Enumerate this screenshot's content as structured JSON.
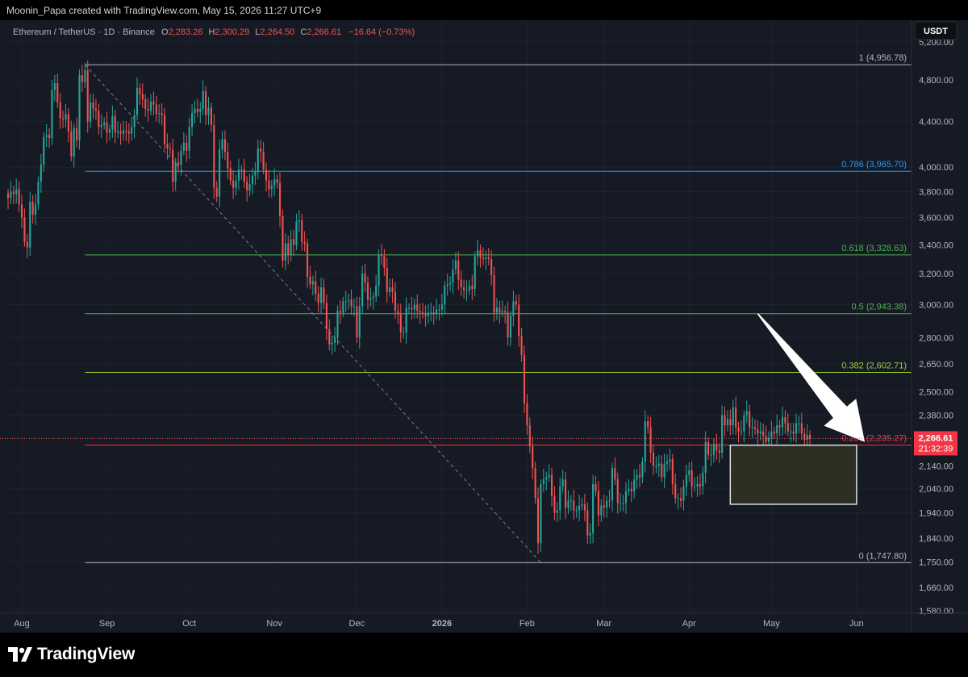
{
  "header": {
    "text": "Moonin_Papa created with TradingView.com, May 15, 2026 11:27 UTC+9"
  },
  "legend": {
    "symbol": "Ethereum / TetherUS · 1D · Binance",
    "O_label": "O",
    "O": "2,283.26",
    "H_label": "H",
    "H": "2,300.29",
    "L_label": "L",
    "L": "2,264.50",
    "C_label": "C",
    "C": "2,266.61",
    "change": "−16.64 (−0.73%)"
  },
  "currency_badge": "USDT",
  "price_badge": {
    "price": "2,266.61",
    "countdown": "21:32:39"
  },
  "brand": "TradingView",
  "colors": {
    "up": "#26a69a",
    "down": "#ef5350",
    "bg": "#161a25",
    "fib_1": "#b2b5be",
    "fib_0786": "#2196f3",
    "fib_0618": "#4caf50",
    "fib_05": "#4caf50",
    "fib_0382": "#9acd32",
    "fib_0236": "#f23645",
    "fib_0": "#b2b5be"
  },
  "chart_data": {
    "type": "candlestick",
    "scale": "log",
    "ylim": [
      1580,
      5350
    ],
    "x_range": [
      "2025-07-27",
      "2026-06-21"
    ],
    "y_ticks": [
      {
        "v": 5200,
        "label": "5,200.00"
      },
      {
        "v": 4800,
        "label": "4,800.00"
      },
      {
        "v": 4400,
        "label": "4,400.00"
      },
      {
        "v": 4000,
        "label": "4,000.00"
      },
      {
        "v": 3800,
        "label": "3,800.00"
      },
      {
        "v": 3600,
        "label": "3,600.00"
      },
      {
        "v": 3400,
        "label": "3,400.00"
      },
      {
        "v": 3200,
        "label": "3,200.00"
      },
      {
        "v": 3000,
        "label": "3,000.00"
      },
      {
        "v": 2800,
        "label": "2,800.00"
      },
      {
        "v": 2650,
        "label": "2,650.00"
      },
      {
        "v": 2500,
        "label": "2,500.00"
      },
      {
        "v": 2380,
        "label": "2,380.00"
      },
      {
        "v": 2140,
        "label": "2,140.00"
      },
      {
        "v": 2040,
        "label": "2,040.00"
      },
      {
        "v": 1940,
        "label": "1,940.00"
      },
      {
        "v": 1840,
        "label": "1,840.00"
      },
      {
        "v": 1750,
        "label": "1,750.00"
      },
      {
        "v": 1660,
        "label": "1,660.00"
      },
      {
        "v": 1580,
        "label": "1,580.00"
      }
    ],
    "x_ticks": [
      {
        "date": "2025-08-01",
        "label": "Aug"
      },
      {
        "date": "2025-09-01",
        "label": "Sep"
      },
      {
        "date": "2025-10-01",
        "label": "Oct"
      },
      {
        "date": "2025-11-01",
        "label": "Nov"
      },
      {
        "date": "2025-12-01",
        "label": "Dec"
      },
      {
        "date": "2026-01-01",
        "label": "2026",
        "bold": true
      },
      {
        "date": "2026-02-01",
        "label": "Feb"
      },
      {
        "date": "2026-03-01",
        "label": "Mar"
      },
      {
        "date": "2026-04-01",
        "label": "Apr"
      },
      {
        "date": "2026-05-01",
        "label": "May"
      },
      {
        "date": "2026-06-01",
        "label": "Jun"
      }
    ],
    "fib_levels": [
      {
        "level": "1",
        "price": 4956.78,
        "label": "1 (4,956.78)",
        "color": "#b2b5be"
      },
      {
        "level": "0.786",
        "price": 3965.7,
        "label": "0.786 (3,965.70)",
        "color": "#2196f3"
      },
      {
        "level": "0.618",
        "price": 3328.63,
        "label": "0.618 (3,328.63)",
        "color": "#4caf50"
      },
      {
        "level": "0.5",
        "price": 2943.38,
        "label": "0.5 (2,943.38)",
        "color": "#4caf50"
      },
      {
        "level": "0.382",
        "price": 2602.71,
        "label": "0.382 (2,602.71)",
        "color": "#9acd32"
      },
      {
        "level": "0.236",
        "price": 2235.27,
        "label": "0.236 (2,235.27)",
        "color": "#f23645"
      },
      {
        "level": "0",
        "price": 1747.8,
        "label": "0 (1,747.80)",
        "color": "#b2b5be"
      }
    ],
    "fib_start_date": "2025-08-24",
    "fib_end_date": "2026-06-21",
    "trend_line": [
      {
        "date": "2025-08-24",
        "price": 4956.78
      },
      {
        "date": "2026-02-06",
        "price": 1747.8
      }
    ],
    "current_price": 2266.61,
    "zone_box": {
      "from": "2026-04-16",
      "to": "2026-06-01",
      "top": 2235,
      "bottom": 1975
    },
    "arrow": {
      "from": {
        "date": "2026-04-26",
        "price": 2943
      },
      "to": {
        "date": "2026-06-04",
        "price": 2250
      }
    },
    "closes": [
      [
        "2025-07-27",
        3750
      ],
      [
        "2025-07-28",
        3800
      ],
      [
        "2025-07-29",
        3780
      ],
      [
        "2025-07-30",
        3820
      ],
      [
        "2025-07-31",
        3700
      ],
      [
        "2025-08-01",
        3600
      ],
      [
        "2025-08-02",
        3420
      ],
      [
        "2025-08-03",
        3380
      ],
      [
        "2025-08-04",
        3720
      ],
      [
        "2025-08-05",
        3620
      ],
      [
        "2025-08-06",
        3700
      ],
      [
        "2025-08-07",
        3880
      ],
      [
        "2025-08-08",
        4020
      ],
      [
        "2025-08-09",
        4260
      ],
      [
        "2025-08-10",
        4280
      ],
      [
        "2025-08-11",
        4250
      ],
      [
        "2025-08-12",
        4700
      ],
      [
        "2025-08-13",
        4770
      ],
      [
        "2025-08-14",
        4580
      ],
      [
        "2025-08-15",
        4430
      ],
      [
        "2025-08-16",
        4420
      ],
      [
        "2025-08-17",
        4470
      ],
      [
        "2025-08-18",
        4310
      ],
      [
        "2025-08-19",
        4090
      ],
      [
        "2025-08-20",
        4340
      ],
      [
        "2025-08-21",
        4230
      ],
      [
        "2025-08-22",
        4850
      ],
      [
        "2025-08-23",
        4780
      ],
      [
        "2025-08-24",
        4900
      ],
      [
        "2025-08-25",
        4400
      ],
      [
        "2025-08-26",
        4580
      ],
      [
        "2025-08-27",
        4520
      ],
      [
        "2025-08-28",
        4500
      ],
      [
        "2025-08-29",
        4350
      ],
      [
        "2025-08-30",
        4370
      ],
      [
        "2025-08-31",
        4390
      ],
      [
        "2025-09-01",
        4300
      ],
      [
        "2025-09-02",
        4330
      ],
      [
        "2025-09-03",
        4450
      ],
      [
        "2025-09-04",
        4300
      ],
      [
        "2025-09-05",
        4310
      ],
      [
        "2025-09-06",
        4290
      ],
      [
        "2025-09-07",
        4320
      ],
      [
        "2025-09-08",
        4310
      ],
      [
        "2025-09-09",
        4290
      ],
      [
        "2025-09-10",
        4350
      ],
      [
        "2025-09-11",
        4460
      ],
      [
        "2025-09-12",
        4720
      ],
      [
        "2025-09-13",
        4660
      ],
      [
        "2025-09-14",
        4610
      ],
      [
        "2025-09-15",
        4520
      ],
      [
        "2025-09-16",
        4500
      ],
      [
        "2025-09-17",
        4590
      ],
      [
        "2025-09-18",
        4560
      ],
      [
        "2025-09-19",
        4470
      ],
      [
        "2025-09-20",
        4480
      ],
      [
        "2025-09-21",
        4460
      ],
      [
        "2025-09-22",
        4200
      ],
      [
        "2025-09-23",
        4160
      ],
      [
        "2025-09-24",
        4150
      ],
      [
        "2025-09-25",
        3880
      ],
      [
        "2025-09-26",
        4040
      ],
      [
        "2025-09-27",
        4020
      ],
      [
        "2025-09-28",
        4140
      ],
      [
        "2025-09-29",
        4210
      ],
      [
        "2025-09-30",
        4140
      ],
      [
        "2025-10-01",
        4350
      ],
      [
        "2025-10-02",
        4480
      ],
      [
        "2025-10-03",
        4520
      ],
      [
        "2025-10-04",
        4490
      ],
      [
        "2025-10-05",
        4520
      ],
      [
        "2025-10-06",
        4690
      ],
      [
        "2025-10-07",
        4460
      ],
      [
        "2025-10-08",
        4530
      ],
      [
        "2025-10-09",
        4370
      ],
      [
        "2025-10-10",
        3830
      ],
      [
        "2025-10-11",
        3760
      ],
      [
        "2025-10-12",
        4150
      ],
      [
        "2025-10-13",
        4240
      ],
      [
        "2025-10-14",
        4130
      ],
      [
        "2025-10-15",
        3990
      ],
      [
        "2025-10-16",
        3890
      ],
      [
        "2025-10-17",
        3830
      ],
      [
        "2025-10-18",
        3890
      ],
      [
        "2025-10-19",
        3980
      ],
      [
        "2025-10-20",
        3980
      ],
      [
        "2025-10-21",
        3880
      ],
      [
        "2025-10-22",
        3810
      ],
      [
        "2025-10-23",
        3860
      ],
      [
        "2025-10-24",
        3930
      ],
      [
        "2025-10-25",
        3960
      ],
      [
        "2025-10-26",
        4160
      ],
      [
        "2025-10-27",
        4130
      ],
      [
        "2025-10-28",
        3980
      ],
      [
        "2025-10-29",
        3890
      ],
      [
        "2025-10-30",
        3820
      ],
      [
        "2025-10-31",
        3850
      ],
      [
        "2025-11-01",
        3900
      ],
      [
        "2025-11-02",
        3870
      ],
      [
        "2025-11-03",
        3610
      ],
      [
        "2025-11-04",
        3290
      ],
      [
        "2025-11-05",
        3410
      ],
      [
        "2025-11-06",
        3330
      ],
      [
        "2025-11-07",
        3440
      ],
      [
        "2025-11-08",
        3400
      ],
      [
        "2025-11-09",
        3570
      ],
      [
        "2025-11-10",
        3580
      ],
      [
        "2025-11-11",
        3420
      ],
      [
        "2025-11-12",
        3410
      ],
      [
        "2025-11-13",
        3180
      ],
      [
        "2025-11-14",
        3130
      ],
      [
        "2025-11-15",
        3150
      ],
      [
        "2025-11-16",
        3070
      ],
      [
        "2025-11-17",
        3010
      ],
      [
        "2025-11-18",
        3110
      ],
      [
        "2025-11-19",
        3010
      ],
      [
        "2025-11-20",
        2850
      ],
      [
        "2025-11-21",
        2760
      ],
      [
        "2025-11-22",
        2770
      ],
      [
        "2025-11-23",
        2800
      ],
      [
        "2025-11-24",
        2960
      ],
      [
        "2025-11-25",
        2950
      ],
      [
        "2025-11-26",
        3020
      ],
      [
        "2025-11-27",
        3020
      ],
      [
        "2025-11-28",
        3030
      ],
      [
        "2025-11-29",
        2990
      ],
      [
        "2025-11-30",
        2990
      ],
      [
        "2025-12-01",
        2800
      ],
      [
        "2025-12-02",
        2990
      ],
      [
        "2025-12-03",
        3200
      ],
      [
        "2025-12-04",
        3140
      ],
      [
        "2025-12-05",
        3030
      ],
      [
        "2025-12-06",
        3040
      ],
      [
        "2025-12-07",
        3050
      ],
      [
        "2025-12-08",
        3120
      ],
      [
        "2025-12-09",
        3330
      ],
      [
        "2025-12-10",
        3320
      ],
      [
        "2025-12-11",
        3240
      ],
      [
        "2025-12-12",
        3080
      ],
      [
        "2025-12-13",
        3110
      ],
      [
        "2025-12-14",
        3080
      ],
      [
        "2025-12-15",
        2960
      ],
      [
        "2025-12-16",
        2940
      ],
      [
        "2025-12-17",
        2830
      ],
      [
        "2025-12-18",
        2830
      ],
      [
        "2025-12-19",
        2980
      ],
      [
        "2025-12-20",
        2980
      ],
      [
        "2025-12-21",
        2970
      ],
      [
        "2025-12-22",
        3000
      ],
      [
        "2025-12-23",
        2960
      ],
      [
        "2025-12-24",
        2950
      ],
      [
        "2025-12-25",
        2940
      ],
      [
        "2025-12-26",
        2930
      ],
      [
        "2025-12-27",
        2950
      ],
      [
        "2025-12-28",
        2950
      ],
      [
        "2025-12-29",
        2940
      ],
      [
        "2025-12-30",
        2970
      ],
      [
        "2025-12-31",
        2970
      ],
      [
        "2026-01-01",
        3000
      ],
      [
        "2026-01-02",
        3120
      ],
      [
        "2026-01-03",
        3130
      ],
      [
        "2026-01-04",
        3140
      ],
      [
        "2026-01-05",
        3230
      ],
      [
        "2026-01-06",
        3290
      ],
      [
        "2026-01-07",
        3160
      ],
      [
        "2026-01-08",
        3110
      ],
      [
        "2026-01-09",
        3090
      ],
      [
        "2026-01-10",
        3090
      ],
      [
        "2026-01-11",
        3120
      ],
      [
        "2026-01-12",
        3100
      ],
      [
        "2026-01-13",
        3320
      ],
      [
        "2026-01-14",
        3360
      ],
      [
        "2026-01-15",
        3310
      ],
      [
        "2026-01-16",
        3300
      ],
      [
        "2026-01-17",
        3310
      ],
      [
        "2026-01-18",
        3300
      ],
      [
        "2026-01-19",
        3190
      ],
      [
        "2026-01-20",
        2950
      ],
      [
        "2026-01-21",
        2980
      ],
      [
        "2026-01-22",
        2950
      ],
      [
        "2026-01-23",
        2960
      ],
      [
        "2026-01-24",
        2950
      ],
      [
        "2026-01-25",
        2800
      ],
      [
        "2026-01-26",
        2930
      ],
      [
        "2026-01-27",
        3020
      ],
      [
        "2026-01-28",
        3000
      ],
      [
        "2026-01-29",
        2810
      ],
      [
        "2026-01-30",
        2700
      ],
      [
        "2026-01-31",
        2440
      ],
      [
        "2026-02-01",
        2330
      ],
      [
        "2026-02-02",
        2230
      ],
      [
        "2026-02-03",
        2130
      ],
      [
        "2026-02-04",
        2000
      ],
      [
        "2026-02-05",
        1820
      ],
      [
        "2026-02-06",
        2060
      ],
      [
        "2026-02-07",
        2080
      ],
      [
        "2026-02-08",
        2090
      ],
      [
        "2026-02-09",
        2100
      ],
      [
        "2026-02-10",
        2010
      ],
      [
        "2026-02-11",
        1940
      ],
      [
        "2026-02-12",
        1950
      ],
      [
        "2026-02-13",
        2050
      ],
      [
        "2026-02-14",
        2080
      ],
      [
        "2026-02-15",
        1960
      ],
      [
        "2026-02-16",
        1990
      ],
      [
        "2026-02-17",
        1990
      ],
      [
        "2026-02-18",
        1950
      ],
      [
        "2026-02-19",
        1950
      ],
      [
        "2026-02-20",
        1970
      ],
      [
        "2026-02-21",
        1975
      ],
      [
        "2026-02-22",
        1950
      ],
      [
        "2026-02-23",
        1850
      ],
      [
        "2026-02-24",
        1860
      ],
      [
        "2026-02-25",
        2060
      ],
      [
        "2026-02-26",
        2030
      ],
      [
        "2026-02-27",
        1930
      ],
      [
        "2026-02-28",
        1970
      ],
      [
        "2026-03-01",
        1960
      ],
      [
        "2026-03-02",
        1990
      ],
      [
        "2026-03-03",
        1990
      ],
      [
        "2026-03-04",
        2130
      ],
      [
        "2026-03-05",
        2080
      ],
      [
        "2026-03-06",
        1980
      ],
      [
        "2026-03-07",
        1980
      ],
      [
        "2026-03-08",
        1980
      ],
      [
        "2026-03-09",
        2030
      ],
      [
        "2026-03-10",
        2040
      ],
      [
        "2026-03-11",
        2030
      ],
      [
        "2026-03-12",
        2080
      ],
      [
        "2026-03-13",
        2100
      ],
      [
        "2026-03-14",
        2090
      ],
      [
        "2026-03-15",
        2160
      ],
      [
        "2026-03-16",
        2350
      ],
      [
        "2026-03-17",
        2320
      ],
      [
        "2026-03-18",
        2200
      ],
      [
        "2026-03-19",
        2140
      ],
      [
        "2026-03-20",
        2140
      ],
      [
        "2026-03-21",
        2150
      ],
      [
        "2026-03-22",
        2090
      ],
      [
        "2026-03-23",
        2150
      ],
      [
        "2026-03-24",
        2160
      ],
      [
        "2026-03-25",
        2170
      ],
      [
        "2026-03-26",
        2060
      ],
      [
        "2026-03-27",
        2000
      ],
      [
        "2026-03-28",
        2000
      ],
      [
        "2026-03-29",
        1990
      ],
      [
        "2026-03-30",
        2050
      ],
      [
        "2026-03-31",
        2100
      ],
      [
        "2026-04-01",
        2120
      ],
      [
        "2026-04-02",
        2050
      ],
      [
        "2026-04-03",
        2050
      ],
      [
        "2026-04-04",
        2060
      ],
      [
        "2026-04-05",
        2050
      ],
      [
        "2026-04-06",
        2110
      ],
      [
        "2026-04-07",
        2250
      ],
      [
        "2026-04-08",
        2190
      ],
      [
        "2026-04-09",
        2190
      ],
      [
        "2026-04-10",
        2240
      ],
      [
        "2026-04-11",
        2210
      ],
      [
        "2026-04-12",
        2200
      ],
      [
        "2026-04-13",
        2380
      ],
      [
        "2026-04-14",
        2330
      ],
      [
        "2026-04-15",
        2360
      ],
      [
        "2026-04-16",
        2330
      ],
      [
        "2026-04-17",
        2420
      ],
      [
        "2026-04-18",
        2320
      ],
      [
        "2026-04-19",
        2300
      ],
      [
        "2026-04-20",
        2300
      ],
      [
        "2026-04-21",
        2380
      ],
      [
        "2026-04-22",
        2400
      ],
      [
        "2026-04-23",
        2320
      ],
      [
        "2026-04-24",
        2320
      ],
      [
        "2026-04-25",
        2310
      ],
      [
        "2026-04-26",
        2290
      ],
      [
        "2026-04-27",
        2300
      ],
      [
        "2026-04-28",
        2280
      ],
      [
        "2026-04-29",
        2250
      ],
      [
        "2026-04-30",
        2270
      ],
      [
        "2026-05-01",
        2300
      ],
      [
        "2026-05-02",
        2290
      ],
      [
        "2026-05-03",
        2330
      ],
      [
        "2026-05-04",
        2320
      ],
      [
        "2026-05-05",
        2370
      ],
      [
        "2026-05-06",
        2340
      ],
      [
        "2026-05-07",
        2300
      ],
      [
        "2026-05-08",
        2300
      ],
      [
        "2026-05-09",
        2290
      ],
      [
        "2026-05-10",
        2340
      ],
      [
        "2026-05-11",
        2340
      ],
      [
        "2026-05-12",
        2290
      ],
      [
        "2026-05-13",
        2260
      ],
      [
        "2026-05-14",
        2283
      ],
      [
        "2026-05-15",
        2266.61
      ]
    ]
  }
}
